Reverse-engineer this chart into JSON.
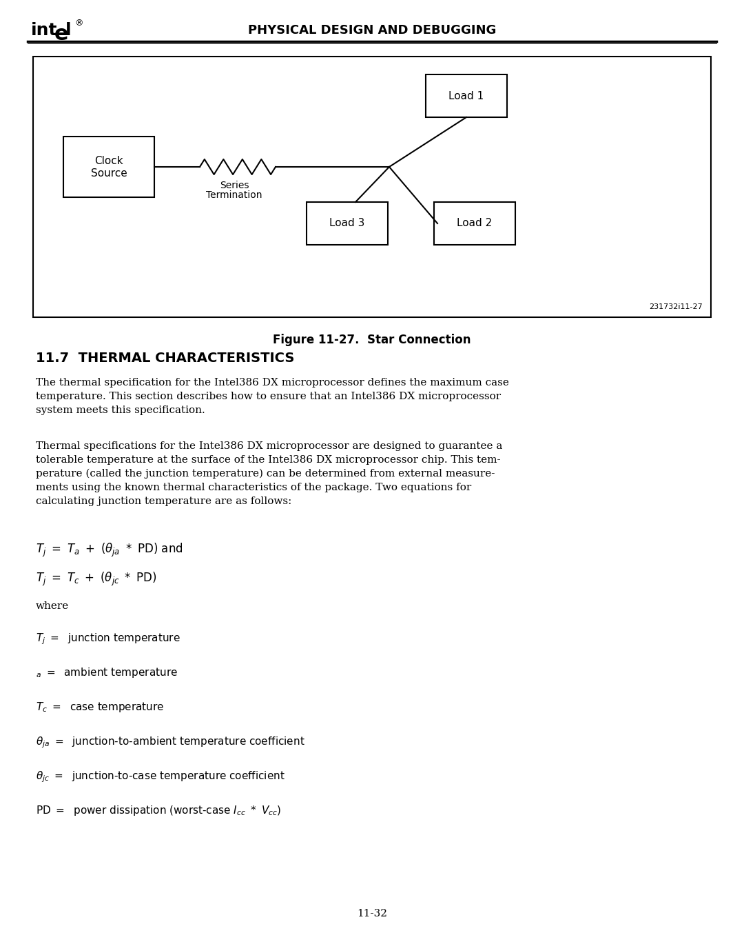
{
  "page_bg": "#ffffff",
  "header_text": "PHYSICAL DESIGN AND DEBUGGING",
  "figure_caption": "Figure 11-27.  Star Connection",
  "figure_id": "231732i11-27",
  "section_title": "11.7  THERMAL CHARACTERISTICS",
  "para1_line1": "The thermal specification for the Intel386 DX microprocessor defines the maximum case",
  "para1_line2": "temperature. This section describes how to ensure that an Intel386 DX microprocessor",
  "para1_line3": "system meets this specification.",
  "para2_line1": "Thermal specifications for the Intel386 DX microprocessor are designed to guarantee a",
  "para2_line2": "tolerable temperature at the surface of the Intel386 DX microprocessor chip. This tem-",
  "para2_line3": "perature (called the junction temperature) can be determined from external measure-",
  "para2_line4": "ments using the known thermal characteristics of the package. Two equations for",
  "para2_line5": "calculating junction temperature are as follows:",
  "where_text": "where",
  "page_num": "11-32",
  "text_color": "#000000",
  "box_line_color": "#000000",
  "clock_label1": "Clock",
  "clock_label2": "Source",
  "series_label1": "Series",
  "series_label2": "Termination",
  "load1": "Load 1",
  "load2": "Load 2",
  "load3": "Load 3"
}
